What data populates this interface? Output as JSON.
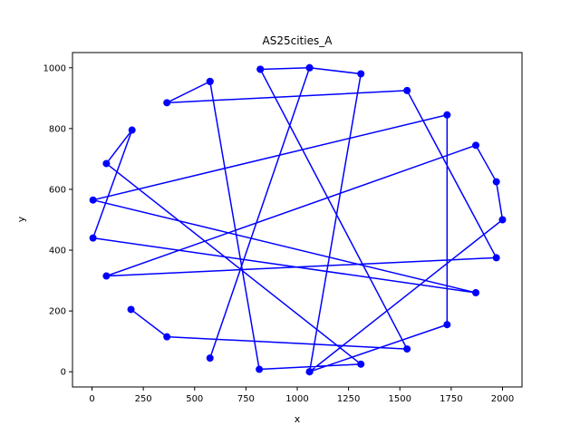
{
  "chart_data": {
    "type": "line",
    "title": "AS25cities_A",
    "xlabel": "x",
    "ylabel": "y",
    "xlim": [
      -95,
      2095
    ],
    "ylim": [
      -50,
      1050
    ],
    "xticks": [
      0,
      250,
      500,
      750,
      1000,
      1250,
      1500,
      1750,
      2000
    ],
    "yticks": [
      0,
      200,
      400,
      600,
      800,
      1000
    ],
    "grid": false,
    "legend": "none",
    "series": [
      {
        "color": "#0000ff",
        "marker": "circle",
        "points": [
          [
            575,
            955
          ],
          [
            815,
            8
          ],
          [
            1310,
            25
          ],
          [
            70,
            685
          ],
          [
            195,
            795
          ],
          [
            5,
            440
          ],
          [
            1870,
            260
          ],
          [
            5,
            565
          ],
          [
            1730,
            845
          ],
          [
            1730,
            155
          ],
          [
            1060,
            0
          ],
          [
            2000,
            500
          ],
          [
            1970,
            625
          ],
          [
            1870,
            745
          ],
          [
            70,
            315
          ],
          [
            1970,
            375
          ],
          [
            1535,
            925
          ],
          [
            365,
            885
          ],
          [
            575,
            955
          ]
        ]
      },
      {
        "color": "#0000ff",
        "marker": "circle",
        "points": [
          [
            820,
            995
          ],
          [
            1535,
            75
          ],
          [
            365,
            115
          ],
          [
            190,
            205
          ]
        ]
      },
      {
        "color": "#0000ff",
        "marker": "circle",
        "points": [
          [
            575,
            45
          ],
          [
            1060,
            1000
          ],
          [
            820,
            995
          ]
        ]
      },
      {
        "color": "#0000ff",
        "marker": "circle",
        "points": [
          [
            1060,
            1000
          ],
          [
            1310,
            980
          ],
          [
            1060,
            0
          ]
        ]
      }
    ]
  }
}
